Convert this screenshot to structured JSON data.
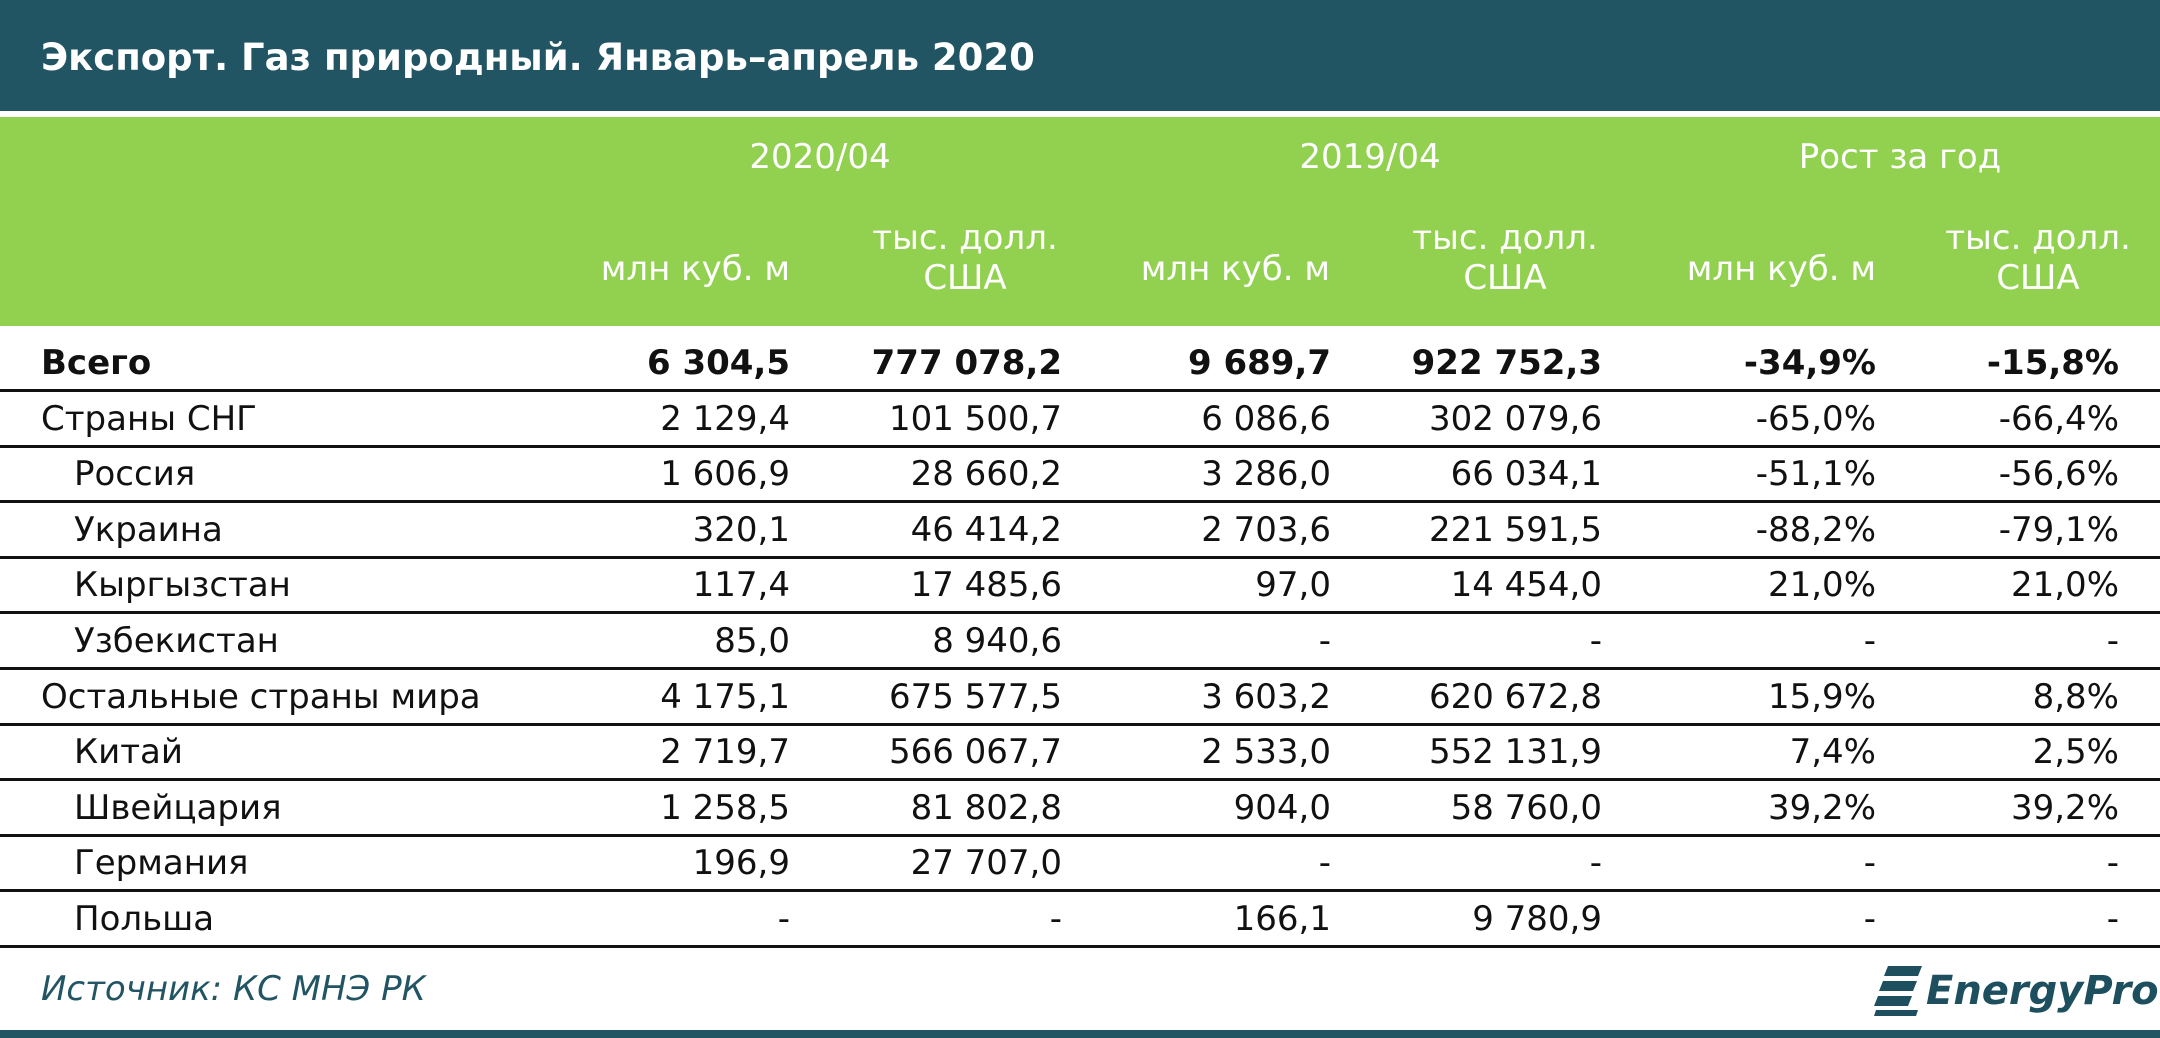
{
  "title": "Экспорт. Газ природный. Январь–апрель 2020",
  "header": {
    "groups": [
      "2020/04",
      "2019/04",
      "Рост за год"
    ],
    "units": [
      "млн куб. м",
      "тыс. долл. США",
      "млн куб. м",
      "тыс. долл. США",
      "млн куб. м",
      "тыс. долл. США"
    ]
  },
  "rows": [
    {
      "name": "Всего",
      "bold": true,
      "indent": 0,
      "values": [
        "6 304,5",
        "777 078,2",
        "9 689,7",
        "922 752,3",
        "-34,9%",
        "-15,8%"
      ]
    },
    {
      "name": "Страны СНГ",
      "bold": false,
      "indent": 0,
      "values": [
        "2 129,4",
        "101 500,7",
        "6 086,6",
        "302 079,6",
        "-65,0%",
        "-66,4%"
      ]
    },
    {
      "name": "Россия",
      "bold": false,
      "indent": 1,
      "values": [
        "1 606,9",
        "28 660,2",
        "3 286,0",
        "66 034,1",
        "-51,1%",
        "-56,6%"
      ]
    },
    {
      "name": "Украина",
      "bold": false,
      "indent": 1,
      "values": [
        "320,1",
        "46 414,2",
        "2 703,6",
        "221 591,5",
        "-88,2%",
        "-79,1%"
      ]
    },
    {
      "name": "Кыргызстан",
      "bold": false,
      "indent": 1,
      "values": [
        "117,4",
        "17 485,6",
        "97,0",
        "14 454,0",
        "21,0%",
        "21,0%"
      ]
    },
    {
      "name": "Узбекистан",
      "bold": false,
      "indent": 1,
      "values": [
        "85,0",
        "8 940,6",
        "-",
        "-",
        "-",
        "-"
      ]
    },
    {
      "name": "Остальные страны мира",
      "bold": false,
      "indent": 0,
      "values": [
        "4 175,1",
        "675 577,5",
        "3 603,2",
        "620 672,8",
        "15,9%",
        "8,8%"
      ]
    },
    {
      "name": "Китай",
      "bold": false,
      "indent": 1,
      "values": [
        "2 719,7",
        "566 067,7",
        "2 533,0",
        "552 131,9",
        "7,4%",
        "2,5%"
      ]
    },
    {
      "name": "Швейцария",
      "bold": false,
      "indent": 1,
      "values": [
        "1 258,5",
        "81 802,8",
        "904,0",
        "58 760,0",
        "39,2%",
        "39,2%"
      ]
    },
    {
      "name": "Германия",
      "bold": false,
      "indent": 1,
      "values": [
        "196,9",
        "27 707,0",
        "-",
        "-",
        "-",
        "-"
      ]
    },
    {
      "name": "Польша",
      "bold": false,
      "indent": 1,
      "values": [
        "-",
        "-",
        "166,1",
        "9 780,9",
        "-",
        "-"
      ]
    }
  ],
  "footer": {
    "source": "Источник: КС МНЭ РК",
    "logo_text": "EnergyProm"
  },
  "colors": {
    "title_bg": "#215563",
    "header_bg": "#92d050",
    "header_text": "#ffffff",
    "source_text": "#215563"
  }
}
